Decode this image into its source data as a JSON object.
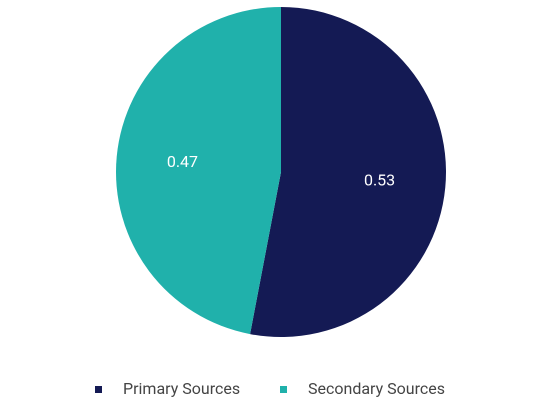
{
  "chart_data": {
    "type": "pie",
    "categories": [
      "Primary Sources",
      "Secondary Sources"
    ],
    "values": [
      0.53,
      0.47
    ],
    "colors": [
      "#141a54",
      "#20b1ab"
    ],
    "legend": "bottom"
  }
}
